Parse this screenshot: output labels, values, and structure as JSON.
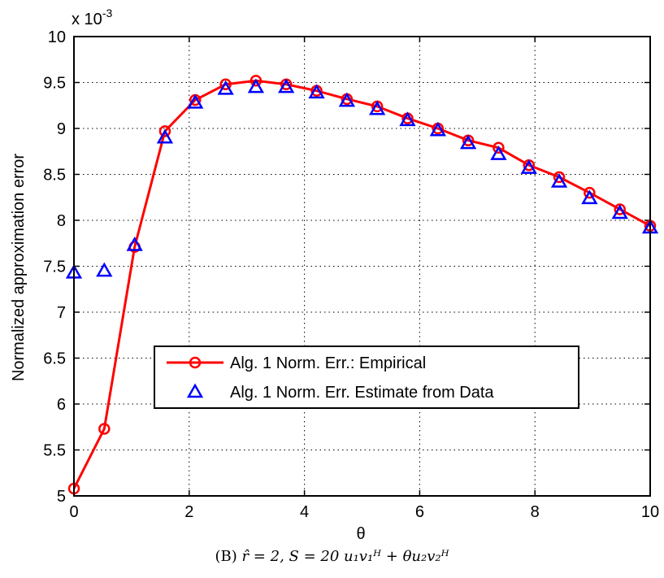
{
  "chart_data": {
    "type": "line",
    "xlabel": "θ",
    "ylabel": "Normalized approximation error",
    "y_multiplier_label": "x 10",
    "y_multiplier_exponent": "-3",
    "xlim": [
      0,
      10
    ],
    "ylim": [
      5,
      10
    ],
    "x_ticks": [
      0,
      2,
      4,
      6,
      8,
      10
    ],
    "y_ticks": [
      5,
      5.5,
      6,
      6.5,
      7,
      7.5,
      8,
      8.5,
      9,
      9.5,
      10
    ],
    "x_tick_labels": [
      "0",
      "2",
      "4",
      "6",
      "8",
      "10"
    ],
    "y_tick_labels": [
      "5",
      "5.5",
      "6",
      "6.5",
      "7",
      "7.5",
      "8",
      "8.5",
      "9",
      "9.5",
      "10"
    ],
    "grid": true,
    "legend_position": "center",
    "x": [
      0,
      0.526,
      1.053,
      1.579,
      2.105,
      2.632,
      3.158,
      3.684,
      4.211,
      4.737,
      5.263,
      5.789,
      6.316,
      6.842,
      7.368,
      7.895,
      8.421,
      8.947,
      9.474,
      10
    ],
    "series": [
      {
        "name": "Alg. 1 Norm. Err.: Empirical",
        "color": "#ff0000",
        "marker": "circle",
        "line": true,
        "values": [
          5.08,
          5.73,
          7.71,
          8.97,
          9.31,
          9.48,
          9.52,
          9.48,
          9.41,
          9.32,
          9.24,
          9.11,
          9.0,
          8.87,
          8.79,
          8.6,
          8.47,
          8.3,
          8.12,
          7.94
        ]
      },
      {
        "name": "Alg. 1 Norm. Err. Estimate from Data",
        "color": "#0000ff",
        "marker": "triangle",
        "line": false,
        "values": [
          7.43,
          7.45,
          7.73,
          8.9,
          9.28,
          9.43,
          9.45,
          9.45,
          9.39,
          9.3,
          9.21,
          9.09,
          8.98,
          8.84,
          8.72,
          8.57,
          8.42,
          8.24,
          8.08,
          7.92
        ]
      }
    ]
  },
  "caption": {
    "prefix": "(B)",
    "text": "r̂ = 2, S = 20 u₁v₁ᴴ + θu₂v₂ᴴ"
  }
}
